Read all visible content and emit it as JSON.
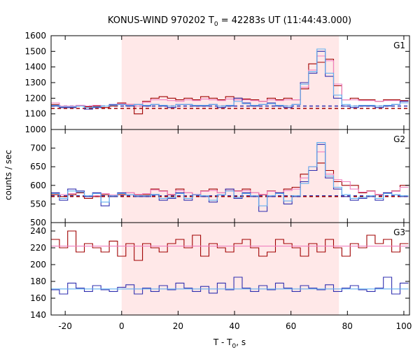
{
  "chart_data": {
    "type": "line",
    "title": "KONUS-WIND 970202 T",
    "title_sub": "0",
    "title_rest": " = 42283s UT (11:44:43.000)",
    "xlabel": "T - T",
    "xlabel_sub": "0",
    "xlabel_rest": ", s",
    "ylabel": "counts / sec",
    "xlim": [
      -25,
      102
    ],
    "xticks": [
      -20,
      0,
      20,
      40,
      60,
      80,
      100
    ],
    "shaded_interval": [
      0,
      77
    ],
    "colors": {
      "dark_red": "#a00000",
      "pink": "#f080c0",
      "dark_blue": "#3030b0",
      "light_blue": "#60b0f0",
      "shade": "#ffe8e8"
    },
    "panels": [
      {
        "name": "G1",
        "ylim": [
          1000,
          1600
        ],
        "yticks": [
          1000,
          1100,
          1200,
          1300,
          1400,
          1500,
          1600
        ],
        "bin_width": 2.944,
        "x_start": -25,
        "series": [
          {
            "color": "dark_red",
            "values": [
              1160,
              1140,
              1140,
              1150,
              1145,
              1150,
              1140,
              1150,
              1170,
              1160,
              1100,
              1180,
              1200,
              1210,
              1200,
              1190,
              1200,
              1190,
              1210,
              1200,
              1190,
              1210,
              1200,
              1195,
              1190,
              1180,
              1200,
              1190,
              1200,
              1190,
              1260,
              1420,
              1430,
              1450,
              1280,
              1190,
              1200,
              1190,
              1190,
              1180,
              1190,
              1190,
              1185
            ]
          },
          {
            "color": "pink",
            "values": [
              1170,
              1150,
              1150,
              1155,
              1150,
              1155,
              1150,
              1155,
              1165,
              1160,
              1150,
              1175,
              1190,
              1190,
              1185,
              1180,
              1190,
              1185,
              1195,
              1190,
              1185,
              1195,
              1190,
              1190,
              1185,
              1180,
              1190,
              1185,
              1190,
              1190,
              1270,
              1380,
              1470,
              1440,
              1290,
              1190,
              1190,
              1185,
              1185,
              1180,
              1185,
              1185,
              1180
            ]
          },
          {
            "color": "dark_blue",
            "values": [
              1150,
              1140,
              1140,
              1150,
              1130,
              1140,
              1150,
              1160,
              1160,
              1150,
              1160,
              1150,
              1160,
              1150,
              1140,
              1160,
              1160,
              1150,
              1150,
              1160,
              1140,
              1150,
              1200,
              1170,
              1150,
              1160,
              1170,
              1150,
              1140,
              1160,
              1300,
              1360,
              1500,
              1340,
              1200,
              1150,
              1140,
              1150,
              1150,
              1140,
              1150,
              1160,
              1180
            ]
          },
          {
            "color": "light_blue",
            "values": [
              1155,
              1145,
              1145,
              1150,
              1140,
              1145,
              1150,
              1155,
              1160,
              1155,
              1160,
              1155,
              1160,
              1155,
              1150,
              1160,
              1160,
              1155,
              1155,
              1160,
              1150,
              1155,
              1180,
              1165,
              1155,
              1160,
              1165,
              1155,
              1150,
              1160,
              1290,
              1370,
              1515,
              1360,
              1220,
              1160,
              1150,
              1155,
              1155,
              1150,
              1155,
              1160,
              1170
            ]
          }
        ],
        "baselines": [
          {
            "color": "dark_blue",
            "value": 1150,
            "style": "dashed"
          },
          {
            "color": "dark_red",
            "value": 1135,
            "style": "dashed"
          }
        ]
      },
      {
        "name": "G2",
        "ylim": [
          500,
          750
        ],
        "yticks": [
          500,
          550,
          600,
          650,
          700
        ],
        "bin_width": 2.944,
        "x_start": -25,
        "series": [
          {
            "color": "dark_red",
            "values": [
              575,
              570,
              575,
              580,
              565,
              570,
              575,
              570,
              575,
              580,
              575,
              575,
              590,
              585,
              575,
              590,
              580,
              575,
              585,
              590,
              580,
              590,
              585,
              590,
              580,
              575,
              585,
              580,
              590,
              595,
              630,
              640,
              660,
              640,
              610,
              600,
              600,
              580,
              585,
              575,
              580,
              585,
              600
            ]
          },
          {
            "color": "pink",
            "values": [
              580,
              575,
              578,
              582,
              570,
              572,
              578,
              574,
              578,
              580,
              576,
              578,
              588,
              584,
              576,
              586,
              580,
              576,
              584,
              586,
              580,
              586,
              584,
              586,
              580,
              576,
              584,
              580,
              586,
              590,
              620,
              650,
              690,
              630,
              615,
              610,
              590,
              582,
              584,
              576,
              580,
              584,
              595
            ]
          },
          {
            "color": "dark_blue",
            "values": [
              580,
              560,
              590,
              585,
              570,
              580,
              545,
              570,
              580,
              575,
              570,
              570,
              575,
              560,
              565,
              580,
              560,
              575,
              570,
              555,
              575,
              590,
              565,
              580,
              570,
              530,
              570,
              580,
              550,
              570,
              610,
              640,
              710,
              620,
              590,
              570,
              560,
              565,
              570,
              560,
              580,
              575,
              570
            ]
          },
          {
            "color": "light_blue",
            "values": [
              578,
              565,
              585,
              582,
              572,
              578,
              555,
              572,
              578,
              575,
              572,
              572,
              576,
              565,
              568,
              578,
              565,
              575,
              572,
              560,
              575,
              585,
              568,
              578,
              572,
              545,
              572,
              578,
              558,
              572,
              605,
              650,
              715,
              625,
              595,
              575,
              565,
              568,
              572,
              565,
              578,
              575,
              572
            ]
          }
        ],
        "baselines": [
          {
            "color": "dark_blue",
            "value": 572,
            "style": "dashed"
          },
          {
            "color": "dark_red",
            "value": 570,
            "style": "dashed"
          }
        ]
      },
      {
        "name": "G3",
        "ylim": [
          140,
          250
        ],
        "yticks": [
          140,
          160,
          180,
          200,
          220,
          240
        ],
        "bin_width": 2.944,
        "x_start": -25,
        "series": [
          {
            "color": "dark_red",
            "values": [
              230,
              220,
              240,
              215,
              225,
              220,
              215,
              228,
              210,
              225,
              205,
              225,
              220,
              215,
              225,
              230,
              220,
              235,
              210,
              225,
              220,
              215,
              225,
              230,
              220,
              210,
              215,
              230,
              225,
              220,
              210,
              225,
              215,
              230,
              220,
              210,
              225,
              220,
              235,
              225,
              230,
              215,
              225
            ]
          },
          {
            "color": "pink",
            "values": [
              222,
              222,
              222,
              222,
              222,
              222,
              222,
              222,
              222,
              222,
              222,
              222,
              222,
              222,
              222,
              222,
              222,
              222,
              222,
              222,
              222,
              222,
              222,
              222,
              222,
              222,
              222,
              222,
              222,
              222,
              222,
              222,
              222,
              222,
              222,
              222,
              222,
              222,
              222,
              222,
              222,
              222,
              222
            ]
          },
          {
            "color": "dark_blue",
            "values": [
              170,
              165,
              178,
              172,
              168,
              175,
              170,
              168,
              173,
              176,
              165,
              172,
              168,
              175,
              170,
              178,
              172,
              168,
              174,
              166,
              178,
              170,
              185,
              172,
              168,
              175,
              170,
              178,
              172,
              168,
              175,
              172,
              170,
              176,
              168,
              172,
              175,
              170,
              168,
              172,
              185,
              165,
              178
            ]
          },
          {
            "color": "light_blue",
            "values": [
              171,
              171,
              171,
              171,
              171,
              171,
              171,
              171,
              171,
              171,
              171,
              171,
              171,
              171,
              171,
              171,
              171,
              171,
              171,
              171,
              171,
              171,
              171,
              171,
              171,
              171,
              171,
              171,
              171,
              171,
              171,
              171,
              171,
              171,
              171,
              171,
              171,
              171,
              171,
              171,
              171,
              171,
              171
            ]
          }
        ],
        "baselines": []
      }
    ]
  }
}
